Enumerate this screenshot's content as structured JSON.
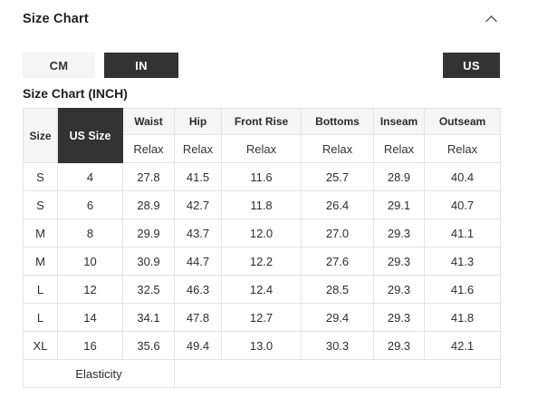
{
  "accordion": {
    "title": "Size Chart",
    "chevron_icon": "chevron-up"
  },
  "unit_toggle": {
    "cm_label": "CM",
    "in_label": "IN",
    "selected": "IN"
  },
  "region_toggle": {
    "us_label": "US",
    "selected": "US"
  },
  "subtitle": "Size Chart (INCH)",
  "colors": {
    "accent_dark": "#333333",
    "header_bg": "#f5f5f5",
    "border": "#e3e3e3"
  },
  "table": {
    "corner_header": "Size",
    "us_size_header": "US Size",
    "measure_headers": [
      "Waist",
      "Hip",
      "Front Rise",
      "Bottoms",
      "Inseam",
      "Outseam"
    ],
    "fit_labels": [
      "Relax",
      "Relax",
      "Relax",
      "Relax",
      "Relax",
      "Relax"
    ],
    "rows": [
      {
        "size": "S",
        "us_size": "4",
        "values": [
          "27.8",
          "41.5",
          "11.6",
          "25.7",
          "28.9",
          "40.4"
        ]
      },
      {
        "size": "S",
        "us_size": "6",
        "values": [
          "28.9",
          "42.7",
          "11.8",
          "26.4",
          "29.1",
          "40.7"
        ]
      },
      {
        "size": "M",
        "us_size": "8",
        "values": [
          "29.9",
          "43.7",
          "12.0",
          "27.0",
          "29.3",
          "41.1"
        ]
      },
      {
        "size": "M",
        "us_size": "10",
        "values": [
          "30.9",
          "44.7",
          "12.2",
          "27.6",
          "29.3",
          "41.3"
        ]
      },
      {
        "size": "L",
        "us_size": "12",
        "values": [
          "32.5",
          "46.3",
          "12.4",
          "28.5",
          "29.3",
          "41.6"
        ]
      },
      {
        "size": "L",
        "us_size": "14",
        "values": [
          "34.1",
          "47.8",
          "12.7",
          "29.4",
          "29.3",
          "41.8"
        ]
      },
      {
        "size": "XL",
        "us_size": "16",
        "values": [
          "35.6",
          "49.4",
          "13.0",
          "30.3",
          "29.3",
          "42.1"
        ]
      }
    ],
    "footer_label": "Elasticity"
  }
}
